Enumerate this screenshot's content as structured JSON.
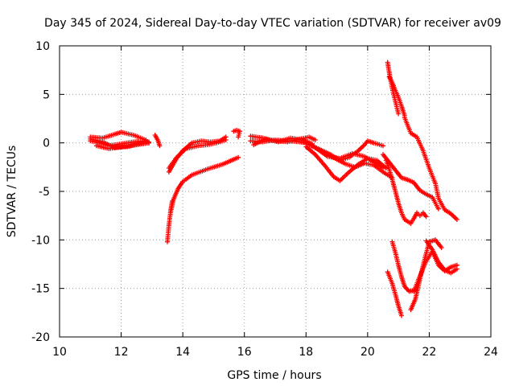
{
  "chart_data": {
    "type": "scatter",
    "title": "Day 345 of 2024, Sidereal Day-to-day VTEC variation (SDTVAR) for receiver av09",
    "xlabel": "GPS time / hours",
    "ylabel": "SDTVAR / TECUs",
    "xlim": [
      10,
      24
    ],
    "ylim": [
      -20,
      10
    ],
    "xticks": [
      10,
      12,
      14,
      16,
      18,
      20,
      22,
      24
    ],
    "yticks": [
      -20,
      -15,
      -10,
      -5,
      0,
      5,
      10
    ],
    "xtick_labels": [
      "10",
      "12",
      "14",
      "16",
      "18",
      "20",
      "22",
      "24"
    ],
    "ytick_labels": [
      "-20",
      "-15",
      "-10",
      "-5",
      "0",
      "5",
      "10"
    ],
    "grid": true,
    "marker": "plus",
    "color": "#ff0000",
    "series": [
      {
        "name": "seg-a1",
        "x": [
          11.0,
          11.4,
          11.8,
          12.0,
          12.4,
          12.8,
          12.9
        ],
        "y": [
          0.6,
          0.5,
          0.9,
          1.1,
          0.8,
          0.3,
          0.0
        ]
      },
      {
        "name": "seg-a2",
        "x": [
          11.0,
          11.3,
          11.6,
          12.0,
          12.4,
          12.8
        ],
        "y": [
          0.2,
          0.0,
          -0.3,
          -0.1,
          0.1,
          0.2
        ]
      },
      {
        "name": "seg-a3",
        "x": [
          11.0,
          11.4,
          11.8,
          12.2,
          12.6,
          12.9
        ],
        "y": [
          0.4,
          0.1,
          -0.5,
          -0.4,
          -0.1,
          0.1
        ]
      },
      {
        "name": "seg-a4",
        "x": [
          11.2,
          11.6,
          12.0,
          12.5,
          12.9
        ],
        "y": [
          -0.3,
          -0.6,
          -0.4,
          -0.2,
          0.0
        ]
      },
      {
        "name": "seg-b",
        "x": [
          13.1,
          13.2,
          13.25
        ],
        "y": [
          0.8,
          0.2,
          -0.3
        ]
      },
      {
        "name": "seg-c1",
        "x": [
          13.55,
          13.8,
          14.0,
          14.3,
          14.6,
          14.9,
          15.2,
          15.4
        ],
        "y": [
          -3.0,
          -1.6,
          -0.8,
          0.0,
          0.2,
          0.1,
          0.2,
          0.6
        ]
      },
      {
        "name": "seg-c2",
        "x": [
          13.55,
          13.8,
          14.1,
          14.5,
          14.8,
          15.1,
          15.4
        ],
        "y": [
          -2.6,
          -1.5,
          -0.6,
          -0.3,
          -0.2,
          0.0,
          0.3
        ]
      },
      {
        "name": "seg-c3",
        "x": [
          13.5,
          13.55,
          13.6,
          13.7,
          13.85,
          14.0,
          14.3,
          14.8,
          15.3,
          15.8
        ],
        "y": [
          -10.2,
          -8.5,
          -7.2,
          -5.8,
          -4.7,
          -4.0,
          -3.3,
          -2.7,
          -2.2,
          -1.5
        ]
      },
      {
        "name": "seg-c4",
        "x": [
          13.6,
          13.63,
          13.66
        ],
        "y": [
          -7.2,
          -6.5,
          -6.0
        ]
      },
      {
        "name": "seg-d",
        "x": [
          15.65,
          15.75,
          15.85,
          15.8
        ],
        "y": [
          1.2,
          1.3,
          1.2,
          0.6
        ]
      },
      {
        "name": "seg-e1",
        "x": [
          16.2,
          16.6,
          17.0,
          17.4,
          17.8,
          18.1,
          18.3
        ],
        "y": [
          0.7,
          0.5,
          0.2,
          0.1,
          0.4,
          0.6,
          0.3
        ]
      },
      {
        "name": "seg-e2",
        "x": [
          16.2,
          16.6,
          17.0,
          17.4,
          17.8,
          18.0
        ],
        "y": [
          0.2,
          0.1,
          0.3,
          0.2,
          0.1,
          0.0
        ]
      },
      {
        "name": "seg-e3",
        "x": [
          16.3,
          16.7,
          17.1,
          17.5,
          17.9,
          18.2
        ],
        "y": [
          -0.2,
          0.4,
          0.1,
          0.5,
          0.3,
          -0.1
        ]
      },
      {
        "name": "seg-f1",
        "x": [
          18.0,
          18.4,
          18.8,
          19.1,
          19.4,
          19.7,
          19.9,
          20.0,
          20.2,
          20.5
        ],
        "y": [
          -0.1,
          -0.6,
          -1.2,
          -1.8,
          -1.5,
          -0.8,
          -0.2,
          0.2,
          0.0,
          -0.3
        ]
      },
      {
        "name": "seg-f2",
        "x": [
          18.0,
          18.3,
          18.6,
          18.9,
          19.1,
          19.4,
          19.7,
          20.0,
          20.3,
          20.6
        ],
        "y": [
          -0.4,
          -1.2,
          -2.3,
          -3.5,
          -3.9,
          -3.0,
          -2.2,
          -1.6,
          -1.8,
          -2.6
        ]
      },
      {
        "name": "seg-f3",
        "x": [
          18.2,
          18.6,
          19.0,
          19.3,
          19.6,
          19.9,
          20.2,
          20.5,
          20.8
        ],
        "y": [
          -0.3,
          -1.0,
          -1.7,
          -2.2,
          -2.5,
          -2.1,
          -2.3,
          -3.0,
          -3.6
        ]
      },
      {
        "name": "seg-f4",
        "x": [
          18.3,
          18.7,
          19.1,
          19.5,
          19.9,
          20.2,
          20.5
        ],
        "y": [
          -0.5,
          -1.4,
          -1.6,
          -1.1,
          -1.4,
          -2.0,
          -2.6
        ]
      },
      {
        "name": "seg-g1",
        "x": [
          20.6,
          20.7,
          20.8,
          20.9,
          21.0,
          21.1,
          21.2,
          21.4
        ],
        "y": [
          -1.8,
          -2.7,
          -3.8,
          -5.0,
          -6.2,
          -7.2,
          -7.9,
          -8.3
        ]
      },
      {
        "name": "seg-g2",
        "x": [
          21.4,
          21.5,
          21.6,
          21.7,
          21.8,
          21.9
        ],
        "y": [
          -8.3,
          -7.8,
          -7.2,
          -7.5,
          -7.2,
          -7.6
        ]
      },
      {
        "name": "seg-g3",
        "x": [
          20.5,
          20.7,
          20.9,
          21.1,
          21.3,
          21.5,
          21.7,
          21.9,
          22.1,
          22.3
        ],
        "y": [
          -1.2,
          -2.0,
          -2.8,
          -3.6,
          -3.8,
          -4.1,
          -4.9,
          -5.3,
          -5.6,
          -6.8
        ]
      },
      {
        "name": "seg-h1",
        "x": [
          20.65,
          20.72,
          20.8,
          20.9,
          21.0
        ],
        "y": [
          8.3,
          6.9,
          5.6,
          4.3,
          3.0
        ]
      },
      {
        "name": "seg-h2",
        "x": [
          20.7,
          20.8,
          20.9,
          21.0,
          21.1,
          21.2
        ],
        "y": [
          6.8,
          6.2,
          5.4,
          4.7,
          3.8,
          2.8
        ]
      },
      {
        "name": "seg-h3",
        "x": [
          21.2,
          21.4,
          21.6,
          21.8,
          22.0,
          22.2,
          22.3,
          22.5,
          22.7,
          22.9
        ],
        "y": [
          2.6,
          1.0,
          0.6,
          -0.8,
          -2.6,
          -4.2,
          -5.7,
          -6.9,
          -7.3,
          -7.9
        ]
      },
      {
        "name": "seg-i1",
        "x": [
          20.65,
          20.8,
          20.9,
          21.0,
          21.1
        ],
        "y": [
          -13.3,
          -14.5,
          -15.6,
          -16.8,
          -17.8
        ]
      },
      {
        "name": "seg-i2",
        "x": [
          20.8,
          20.9,
          21.0,
          21.1,
          21.2,
          21.35,
          21.5
        ],
        "y": [
          -10.2,
          -11.3,
          -12.6,
          -13.8,
          -14.8,
          -15.3,
          -15.2
        ]
      },
      {
        "name": "seg-i3",
        "x": [
          21.4,
          21.55,
          21.7,
          21.85,
          22.0,
          22.2,
          22.4
        ],
        "y": [
          -17.2,
          -16.1,
          -14.0,
          -12.0,
          -10.2,
          -10.0,
          -10.8
        ]
      },
      {
        "name": "seg-i4",
        "x": [
          21.5,
          21.7,
          21.9,
          22.1,
          22.3,
          22.5,
          22.7,
          22.9
        ],
        "y": [
          -15.3,
          -13.7,
          -12.2,
          -11.2,
          -12.6,
          -13.2,
          -12.8,
          -12.6
        ]
      },
      {
        "name": "seg-i5",
        "x": [
          21.9,
          22.1,
          22.3,
          22.5,
          22.7,
          22.9
        ],
        "y": [
          -10.1,
          -11.0,
          -12.3,
          -13.1,
          -13.4,
          -13.0
        ]
      }
    ]
  }
}
